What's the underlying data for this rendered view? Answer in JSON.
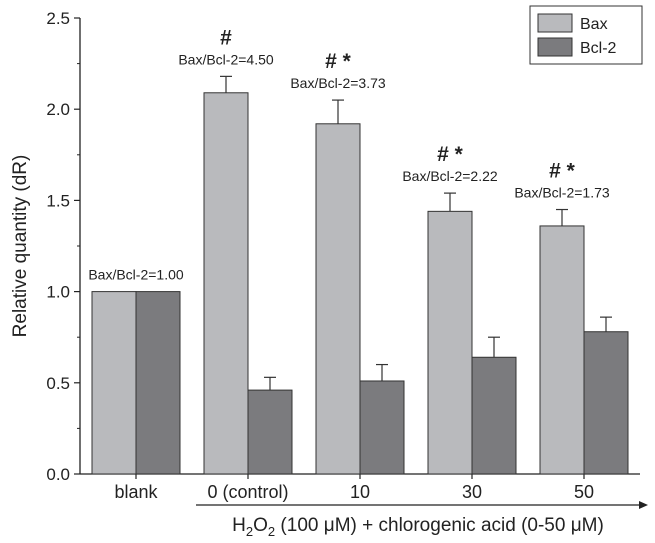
{
  "chart_data": {
    "type": "bar",
    "categories": [
      "blank",
      "0 (control)",
      "10",
      "30",
      "50"
    ],
    "series": [
      {
        "name": "Bax",
        "values": [
          1.0,
          2.09,
          1.92,
          1.44,
          1.36
        ],
        "errors": [
          0,
          0.09,
          0.13,
          0.1,
          0.09
        ],
        "color": "#b9babd"
      },
      {
        "name": "Bcl-2",
        "values": [
          1.0,
          0.46,
          0.51,
          0.64,
          0.78
        ],
        "errors": [
          0,
          0.07,
          0.09,
          0.11,
          0.08
        ],
        "color": "#7b7b7e"
      }
    ],
    "ratio_labels": [
      "Bax/Bcl-2=1.00",
      "Bax/Bcl-2=4.50",
      "Bax/Bcl-2=3.73",
      "Bax/Bcl-2=2.22",
      "Bax/Bcl-2=1.73"
    ],
    "significance": [
      "",
      "#",
      "# *",
      "# *",
      "# *"
    ],
    "ylabel": "Relative quantity (dR)",
    "xlabel": {
      "main": "H",
      "sub1": "2",
      "mid": "O",
      "sub2": "2",
      "rest": " (100 μM) + chlorogenic acid (0-50 μM)"
    },
    "ylim": [
      0,
      2.5
    ],
    "yticks": [
      "0.0",
      "0.5",
      "1.0",
      "1.5",
      "2.0",
      "2.5"
    ],
    "legend_position": "top-right",
    "grid": false
  }
}
